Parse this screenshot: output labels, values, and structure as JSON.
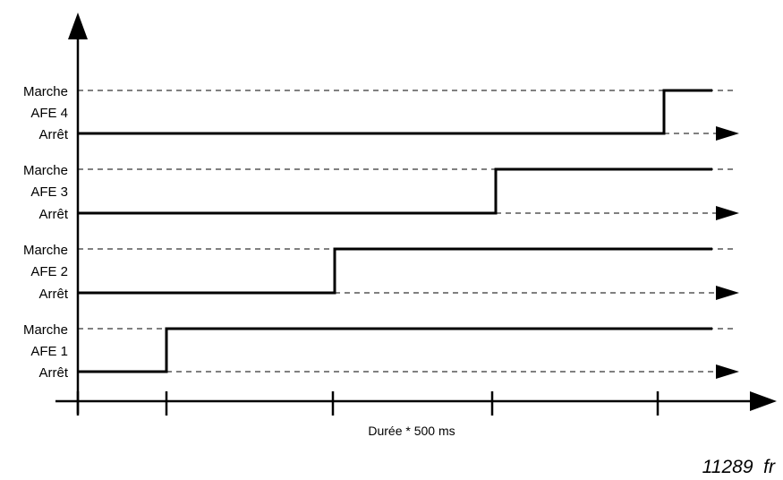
{
  "signals": [
    {
      "name": "AFE 4",
      "on_label": "Marche",
      "off_label": "Arrêt"
    },
    {
      "name": "AFE 3",
      "on_label": "Marche",
      "off_label": "Arrêt"
    },
    {
      "name": "AFE 2",
      "on_label": "Marche",
      "off_label": "Arrêt"
    },
    {
      "name": "AFE 1",
      "on_label": "Marche",
      "off_label": "Arrêt"
    }
  ],
  "x_axis_label": "Durée * 500 ms",
  "figure_ref": "11289  fr"
}
